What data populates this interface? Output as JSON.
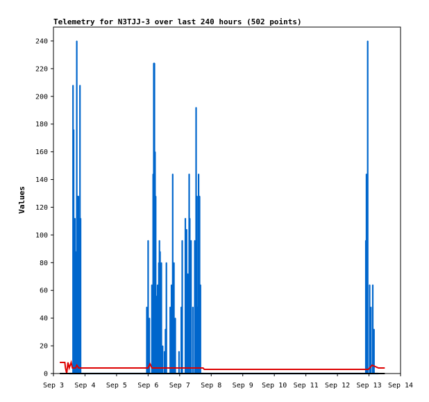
{
  "chart_data": {
    "type": "line",
    "title": "Telemetry for N3TJJ-3 over last 240 hours (502 points)",
    "xlabel": "",
    "ylabel": "Values",
    "ylim": [
      0,
      250
    ],
    "yticks": [
      0,
      20,
      40,
      60,
      80,
      100,
      120,
      140,
      160,
      180,
      200,
      220,
      240
    ],
    "xlim": [
      3,
      14
    ],
    "xticks": [
      {
        "x": 3,
        "label": "Sep 3"
      },
      {
        "x": 4,
        "label": "Sep 4"
      },
      {
        "x": 5,
        "label": "Sep 5"
      },
      {
        "x": 6,
        "label": "Sep 6"
      },
      {
        "x": 7,
        "label": "Sep 7"
      },
      {
        "x": 8,
        "label": "Sep 8"
      },
      {
        "x": 9,
        "label": "Sep 9"
      },
      {
        "x": 10,
        "label": "Sep 10"
      },
      {
        "x": 11,
        "label": "Sep 11"
      },
      {
        "x": 12,
        "label": "Sep 12"
      },
      {
        "x": 13,
        "label": "Sep 13"
      },
      {
        "x": 14,
        "label": "Sep 14"
      }
    ],
    "grid": false,
    "series": [
      {
        "color": "#0066cc",
        "style": "spikes",
        "values": [
          [
            3.5,
            0
          ],
          [
            3.62,
            208
          ],
          [
            3.64,
            176
          ],
          [
            3.66,
            80
          ],
          [
            3.68,
            112
          ],
          [
            3.72,
            88
          ],
          [
            3.74,
            240
          ],
          [
            3.77,
            128
          ],
          [
            3.79,
            128
          ],
          [
            3.81,
            112
          ],
          [
            3.84,
            208
          ],
          [
            3.86,
            112
          ],
          [
            3.9,
            0
          ],
          [
            5.96,
            48
          ],
          [
            6.0,
            96
          ],
          [
            6.04,
            40
          ],
          [
            6.1,
            0
          ],
          [
            6.12,
            64
          ],
          [
            6.16,
            144
          ],
          [
            6.18,
            224
          ],
          [
            6.2,
            224
          ],
          [
            6.22,
            160
          ],
          [
            6.24,
            128
          ],
          [
            6.26,
            56
          ],
          [
            6.3,
            64
          ],
          [
            6.34,
            80
          ],
          [
            6.36,
            96
          ],
          [
            6.38,
            88
          ],
          [
            6.42,
            80
          ],
          [
            6.46,
            20
          ],
          [
            6.5,
            0
          ],
          [
            6.52,
            16
          ],
          [
            6.55,
            32
          ],
          [
            6.58,
            80
          ],
          [
            6.62,
            0
          ],
          [
            6.7,
            48
          ],
          [
            6.74,
            64
          ],
          [
            6.78,
            144
          ],
          [
            6.82,
            80
          ],
          [
            6.86,
            40
          ],
          [
            6.9,
            0
          ],
          [
            6.98,
            16
          ],
          [
            7.05,
            48
          ],
          [
            7.08,
            96
          ],
          [
            7.12,
            0
          ],
          [
            7.18,
            112
          ],
          [
            7.22,
            104
          ],
          [
            7.26,
            72
          ],
          [
            7.3,
            144
          ],
          [
            7.32,
            112
          ],
          [
            7.36,
            96
          ],
          [
            7.42,
            48
          ],
          [
            7.48,
            96
          ],
          [
            7.52,
            192
          ],
          [
            7.55,
            128
          ],
          [
            7.57,
            48
          ],
          [
            7.6,
            144
          ],
          [
            7.63,
            128
          ],
          [
            7.66,
            64
          ],
          [
            7.7,
            0
          ],
          [
            12.9,
            96
          ],
          [
            12.92,
            144
          ],
          [
            12.96,
            240
          ],
          [
            13.02,
            64
          ],
          [
            13.06,
            48
          ],
          [
            13.12,
            64
          ],
          [
            13.16,
            32
          ],
          [
            13.3,
            0
          ]
        ]
      },
      {
        "color": "#dd0000",
        "style": "line",
        "values": [
          [
            3.2,
            8
          ],
          [
            3.36,
            8
          ],
          [
            3.38,
            4
          ],
          [
            3.42,
            0
          ],
          [
            3.46,
            8
          ],
          [
            3.5,
            4
          ],
          [
            3.56,
            8
          ],
          [
            3.6,
            4
          ],
          [
            3.7,
            4
          ],
          [
            3.74,
            6
          ],
          [
            3.8,
            4
          ],
          [
            6.0,
            4
          ],
          [
            6.06,
            7
          ],
          [
            6.12,
            4
          ],
          [
            7.74,
            4
          ],
          [
            7.78,
            3
          ],
          [
            12.98,
            3
          ],
          [
            13.1,
            6
          ],
          [
            13.3,
            4
          ],
          [
            13.5,
            4
          ]
        ]
      },
      {
        "color": "#000000",
        "style": "line",
        "values": [
          [
            3.2,
            0
          ],
          [
            13.5,
            0
          ]
        ]
      }
    ]
  }
}
